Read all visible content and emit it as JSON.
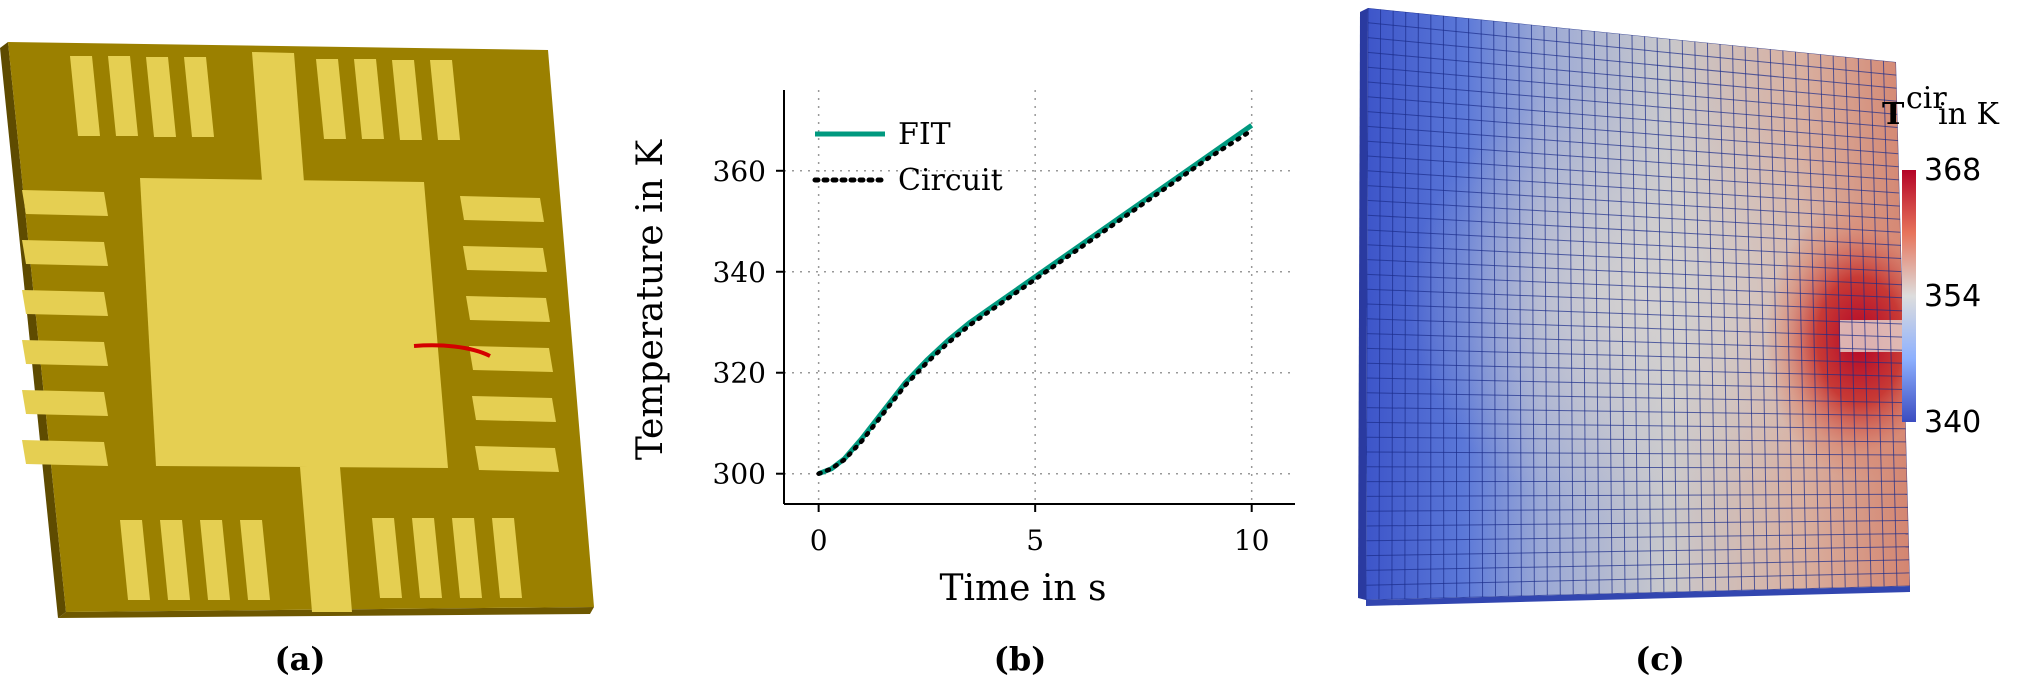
{
  "captions": {
    "a": "(a)",
    "b": "(b)",
    "c": "(c)"
  },
  "colors": {
    "chip_dark": "#9b8000",
    "chip_light": "#e5cf52",
    "chip_side": "#5e4b00",
    "fit_line": "#00997f",
    "circuit_line": "#000000",
    "red_path": "#d40000",
    "map_cold": "#3b4cc0",
    "map_mid": "#dddddd",
    "map_hot": "#b40426"
  },
  "chart_data": {
    "type": "line",
    "xlabel": "Time in s",
    "ylabel": "Temperature in K",
    "xlim": [
      -0.8,
      11
    ],
    "ylim": [
      294,
      376
    ],
    "xticks": [
      0,
      5,
      10
    ],
    "yticks": [
      300,
      320,
      340,
      360
    ],
    "grid": true,
    "legend_position": "top-left",
    "series": [
      {
        "name": "FIT",
        "style": "solid",
        "x": [
          0,
          0.3,
          0.6,
          1,
          1.5,
          2,
          2.5,
          3,
          3.5,
          4,
          5,
          6,
          7,
          8,
          9,
          10
        ],
        "y": [
          300,
          301,
          303,
          307,
          312.5,
          318,
          322.5,
          326.5,
          330,
          333,
          339,
          345,
          351,
          357,
          363,
          369
        ]
      },
      {
        "name": "Circuit",
        "style": "dotted",
        "x": [
          0,
          0.3,
          0.6,
          1,
          1.5,
          2,
          2.5,
          3,
          3.5,
          4,
          5,
          6,
          7,
          8,
          9,
          10
        ],
        "y": [
          300,
          301,
          302.8,
          306.5,
          312,
          317.5,
          322,
          326,
          329.5,
          332.5,
          338.5,
          344.5,
          350.5,
          356.5,
          362.5,
          368
        ]
      }
    ]
  },
  "colorbar": {
    "title_main": "T",
    "title_sup": "cir",
    "title_unit": " in K",
    "ticks": [
      "368",
      "354",
      "340"
    ]
  }
}
